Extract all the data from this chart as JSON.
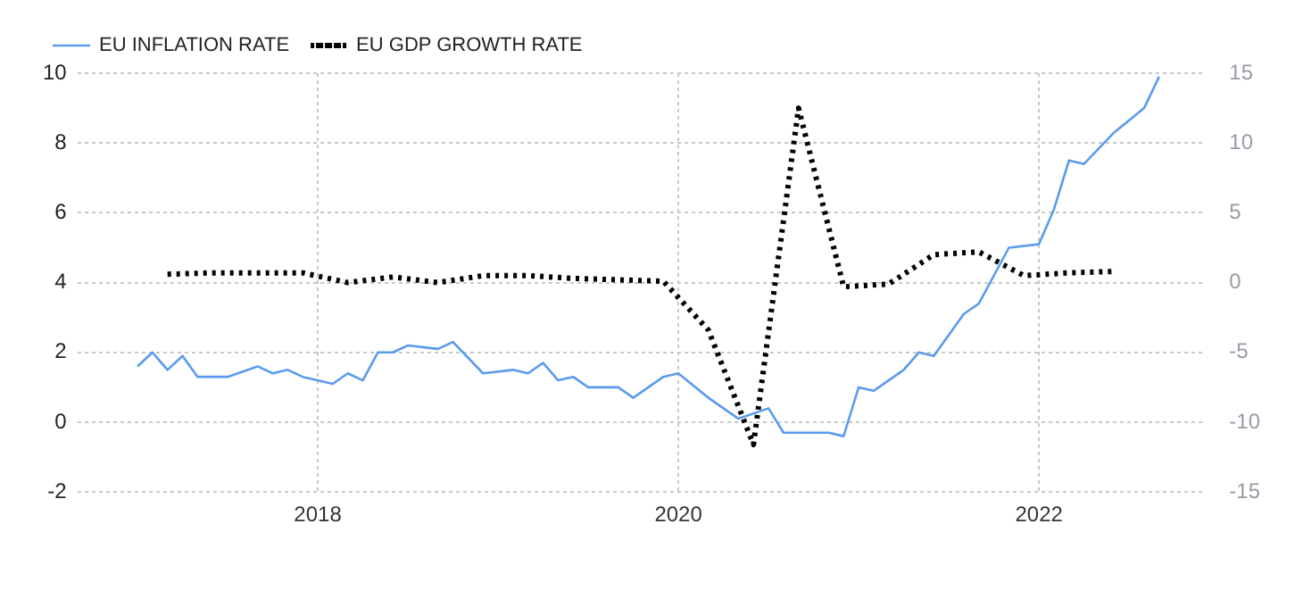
{
  "chart_data": {
    "type": "line",
    "legend": "top left",
    "grid": true,
    "marker": "none",
    "xlim": [
      "2016-09",
      "2022-12"
    ],
    "xticks": [
      "2018",
      "2020",
      "2022"
    ],
    "ylim": [
      -2,
      10
    ],
    "yticks": [
      -2,
      0,
      2,
      4,
      6,
      8,
      10
    ],
    "y2lim": [
      -15,
      15
    ],
    "y2ticks": [
      -15,
      -10,
      -5,
      0,
      5,
      10,
      15
    ],
    "series": [
      {
        "name": "EU INFLATION RATE",
        "color": "#5b9bed",
        "line_style": "solid",
        "x": [
          "2017-01",
          "2017-02",
          "2017-03",
          "2017-04",
          "2017-05",
          "2017-07",
          "2017-09",
          "2017-10",
          "2017-11",
          "2017-12",
          "2018-02",
          "2018-03",
          "2018-04",
          "2018-05",
          "2018-06",
          "2018-07",
          "2018-09",
          "2018-10",
          "2018-12",
          "2019-02",
          "2019-03",
          "2019-04",
          "2019-05",
          "2019-06",
          "2019-07",
          "2019-09",
          "2019-10",
          "2019-12",
          "2020-01",
          "2020-03",
          "2020-05",
          "2020-07",
          "2020-08",
          "2020-11",
          "2020-12",
          "2021-01",
          "2021-02",
          "2021-04",
          "2021-05",
          "2021-06",
          "2021-08",
          "2021-09",
          "2021-11",
          "2022-01",
          "2022-02",
          "2022-03",
          "2022-04",
          "2022-06",
          "2022-08",
          "2022-09"
        ],
        "values": [
          1.6,
          2.0,
          1.5,
          1.9,
          1.3,
          1.3,
          1.6,
          1.4,
          1.5,
          1.3,
          1.1,
          1.4,
          1.2,
          2.0,
          2.0,
          2.2,
          2.1,
          2.3,
          1.4,
          1.5,
          1.4,
          1.7,
          1.2,
          1.3,
          1.0,
          1.0,
          0.7,
          1.3,
          1.4,
          0.7,
          0.1,
          0.4,
          -0.3,
          -0.3,
          -0.4,
          1.0,
          0.9,
          1.5,
          2.0,
          1.9,
          3.1,
          3.4,
          5.0,
          5.1,
          6.1,
          7.5,
          7.4,
          8.3,
          9.0,
          9.9
        ]
      },
      {
        "name": "EU GDP GROWTH RATE",
        "color": "#000000",
        "line_style": "dotted",
        "axis": "y2",
        "x": [
          "2017-03",
          "2017-06",
          "2017-09",
          "2017-12",
          "2018-03",
          "2018-06",
          "2018-09",
          "2018-12",
          "2019-03",
          "2019-06",
          "2019-09",
          "2019-12",
          "2020-03",
          "2020-06",
          "2020-09",
          "2020-12",
          "2021-03",
          "2021-06",
          "2021-09",
          "2021-12",
          "2022-03",
          "2022-06"
        ],
        "values": [
          0.6,
          0.7,
          0.7,
          0.7,
          0.0,
          0.4,
          0.0,
          0.5,
          0.5,
          0.3,
          0.2,
          0.1,
          -3.4,
          -11.6,
          12.5,
          -0.3,
          -0.1,
          2.0,
          2.2,
          0.5,
          0.7,
          0.8
        ]
      }
    ]
  }
}
